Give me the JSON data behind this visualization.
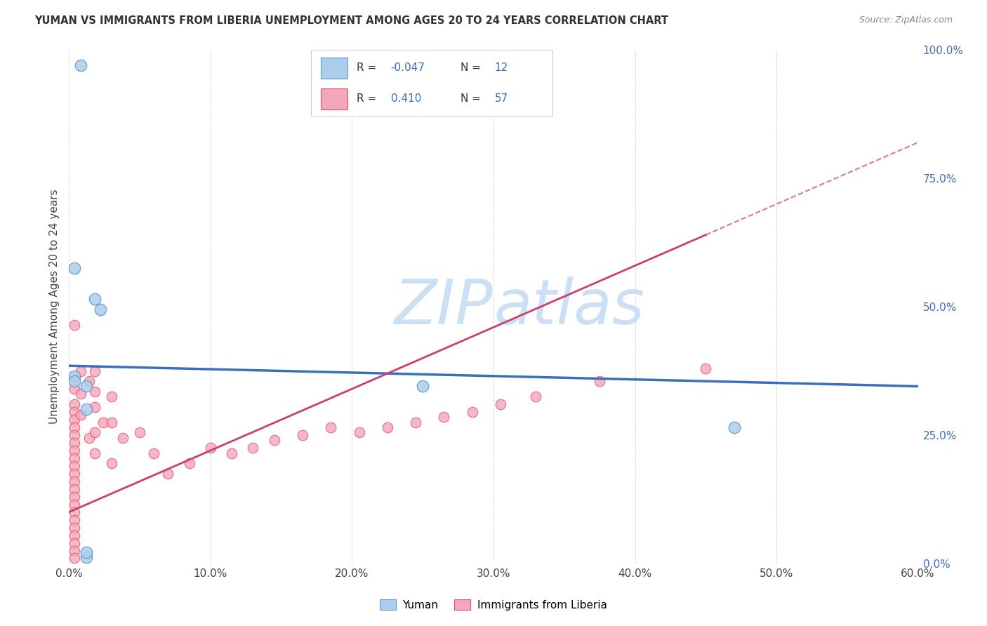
{
  "title": "YUMAN VS IMMIGRANTS FROM LIBERIA UNEMPLOYMENT AMONG AGES 20 TO 24 YEARS CORRELATION CHART",
  "source": "Source: ZipAtlas.com",
  "xlabel_values": [
    0.0,
    0.1,
    0.2,
    0.3,
    0.4,
    0.5,
    0.6
  ],
  "ylabel_right_values": [
    0.0,
    0.25,
    0.5,
    0.75,
    1.0
  ],
  "ylabel_label": "Unemployment Among Ages 20 to 24 years",
  "R_yuman": -0.047,
  "N_yuman": 12,
  "R_liberia": 0.41,
  "N_liberia": 57,
  "color_yuman": "#aecde8",
  "color_yuman_edge": "#5b9bd5",
  "color_liberia": "#f4a7b9",
  "color_liberia_edge": "#e05070",
  "color_trendline_yuman": "#3b6fba",
  "color_trendline_liberia": "#c94070",
  "watermark_color": "#cce0f5",
  "background_color": "#ffffff",
  "yuman_points": [
    [
      0.008,
      0.97
    ],
    [
      0.004,
      0.575
    ],
    [
      0.018,
      0.515
    ],
    [
      0.022,
      0.495
    ],
    [
      0.004,
      0.365
    ],
    [
      0.004,
      0.355
    ],
    [
      0.012,
      0.345
    ],
    [
      0.25,
      0.345
    ],
    [
      0.012,
      0.3
    ],
    [
      0.012,
      0.012
    ],
    [
      0.012,
      0.022
    ],
    [
      0.47,
      0.265
    ]
  ],
  "liberia_points": [
    [
      0.004,
      0.465
    ],
    [
      0.004,
      0.34
    ],
    [
      0.004,
      0.31
    ],
    [
      0.004,
      0.295
    ],
    [
      0.004,
      0.28
    ],
    [
      0.004,
      0.265
    ],
    [
      0.004,
      0.25
    ],
    [
      0.004,
      0.235
    ],
    [
      0.004,
      0.22
    ],
    [
      0.004,
      0.205
    ],
    [
      0.004,
      0.19
    ],
    [
      0.004,
      0.175
    ],
    [
      0.004,
      0.16
    ],
    [
      0.004,
      0.145
    ],
    [
      0.004,
      0.13
    ],
    [
      0.004,
      0.115
    ],
    [
      0.004,
      0.1
    ],
    [
      0.004,
      0.085
    ],
    [
      0.004,
      0.07
    ],
    [
      0.004,
      0.055
    ],
    [
      0.004,
      0.04
    ],
    [
      0.004,
      0.025
    ],
    [
      0.004,
      0.01
    ],
    [
      0.008,
      0.375
    ],
    [
      0.008,
      0.33
    ],
    [
      0.008,
      0.29
    ],
    [
      0.014,
      0.355
    ],
    [
      0.014,
      0.245
    ],
    [
      0.018,
      0.375
    ],
    [
      0.018,
      0.335
    ],
    [
      0.018,
      0.305
    ],
    [
      0.018,
      0.255
    ],
    [
      0.018,
      0.215
    ],
    [
      0.024,
      0.275
    ],
    [
      0.03,
      0.325
    ],
    [
      0.03,
      0.275
    ],
    [
      0.03,
      0.195
    ],
    [
      0.038,
      0.245
    ],
    [
      0.05,
      0.255
    ],
    [
      0.06,
      0.215
    ],
    [
      0.07,
      0.175
    ],
    [
      0.085,
      0.195
    ],
    [
      0.1,
      0.225
    ],
    [
      0.115,
      0.215
    ],
    [
      0.13,
      0.225
    ],
    [
      0.145,
      0.24
    ],
    [
      0.165,
      0.25
    ],
    [
      0.185,
      0.265
    ],
    [
      0.205,
      0.255
    ],
    [
      0.225,
      0.265
    ],
    [
      0.245,
      0.275
    ],
    [
      0.265,
      0.285
    ],
    [
      0.285,
      0.295
    ],
    [
      0.305,
      0.31
    ],
    [
      0.33,
      0.325
    ],
    [
      0.375,
      0.355
    ],
    [
      0.45,
      0.38
    ]
  ],
  "xmin": 0.0,
  "xmax": 0.6,
  "ymin": 0.0,
  "ymax": 1.0,
  "marker_size_yuman": 140,
  "marker_size_liberia": 110,
  "trendline_yuman_x0": 0.0,
  "trendline_yuman_y0": 0.385,
  "trendline_yuman_x1": 0.6,
  "trendline_yuman_y1": 0.345,
  "trendline_liberia_x0": 0.0,
  "trendline_liberia_y0": 0.1,
  "trendline_liberia_x1": 0.6,
  "trendline_liberia_y1": 0.82
}
